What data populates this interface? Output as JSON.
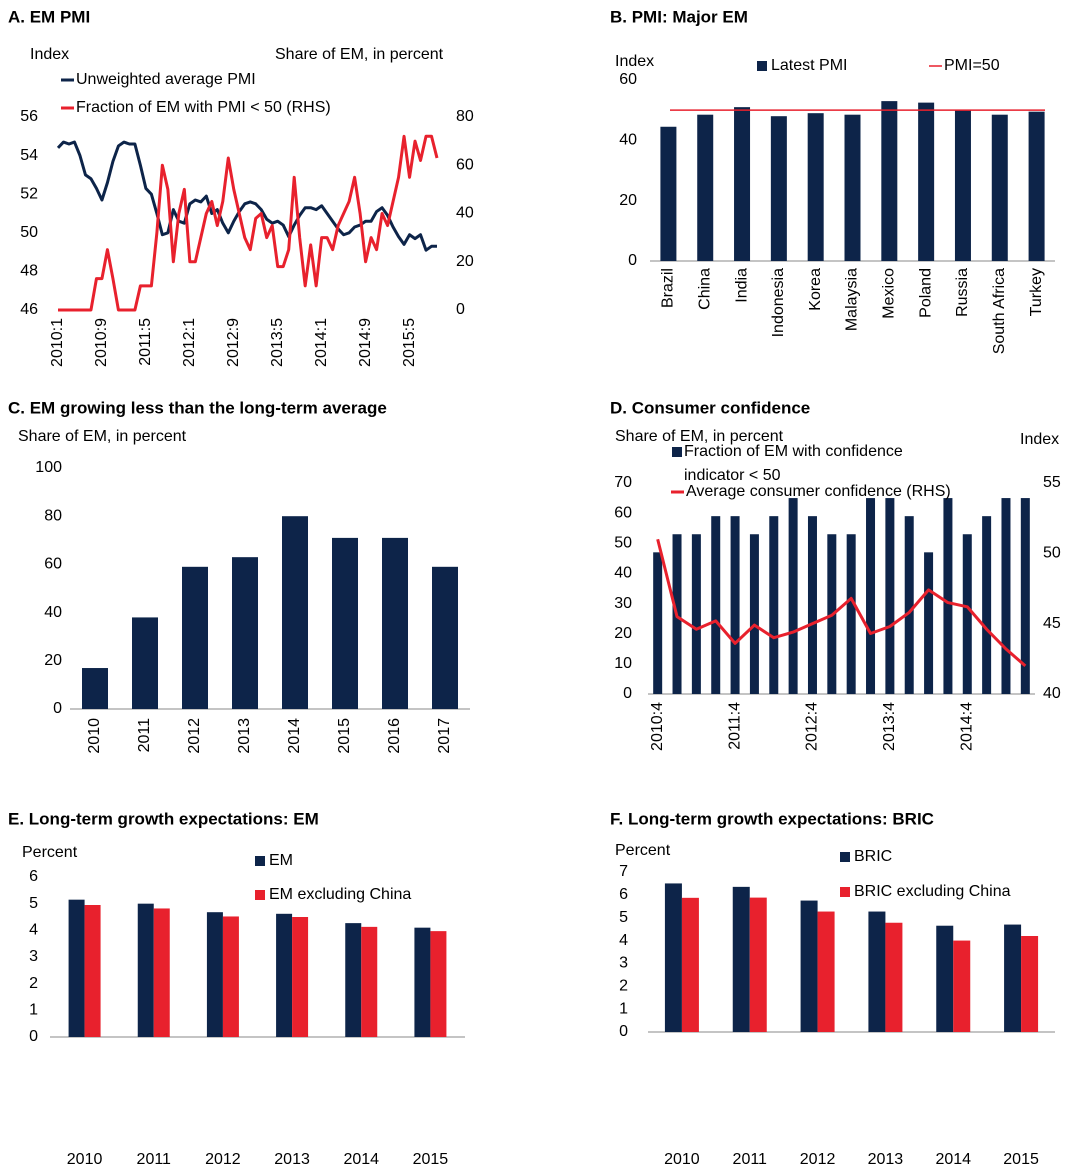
{
  "chart_data": [
    {
      "type": "line",
      "title": "A. EM PMI",
      "y_label": "Index",
      "y2_label": "Share of EM, in percent",
      "categories": [
        "2010:1",
        null,
        null,
        null,
        null,
        null,
        null,
        null,
        "2010:9",
        null,
        null,
        null,
        null,
        null,
        null,
        null,
        "2011:5",
        null,
        null,
        null,
        null,
        null,
        null,
        null,
        "2012:1",
        null,
        null,
        null,
        null,
        null,
        null,
        null,
        "2012:9",
        null,
        null,
        null,
        null,
        null,
        null,
        null,
        "2013:5",
        null,
        null,
        null,
        null,
        null,
        null,
        null,
        "2014:1",
        null,
        null,
        null,
        null,
        null,
        null,
        null,
        "2014:9",
        null,
        null,
        null,
        null,
        null,
        null,
        null,
        "2015:5",
        null,
        null,
        null,
        null,
        null
      ],
      "series": [
        {
          "name": "Unweighted average PMI",
          "color": "#0d2449",
          "values": [
            54.4,
            54.7,
            54.6,
            54.7,
            54.0,
            53.0,
            52.8,
            52.3,
            51.7,
            52.6,
            53.7,
            54.5,
            54.7,
            54.6,
            54.6,
            53.5,
            52.3,
            52.0,
            51.0,
            49.9,
            50.0,
            51.2,
            50.6,
            50.5,
            51.5,
            51.7,
            51.6,
            51.9,
            51.0,
            51.2,
            50.5,
            50.0,
            50.6,
            51.1,
            51.5,
            51.6,
            51.5,
            51.2,
            50.7,
            50.5,
            50.6,
            50.4,
            49.8,
            50.4,
            50.9,
            51.3,
            51.3,
            51.2,
            51.4,
            51.0,
            50.6,
            50.2,
            49.9,
            50.0,
            50.3,
            50.4,
            50.6,
            50.6,
            51.1,
            51.3,
            50.9,
            50.3,
            49.8,
            49.4,
            49.9,
            49.7,
            49.9,
            49.1,
            49.3,
            49.3
          ]
        },
        {
          "name": "Fraction of EM with PMI < 50 (RHS)",
          "color": "#e8212d",
          "axis": "y2",
          "values": [
            0,
            0,
            0,
            0,
            0,
            0,
            0,
            13,
            13,
            25,
            13,
            0,
            0,
            0,
            0,
            10,
            10,
            10,
            32,
            60,
            50,
            20,
            40,
            50,
            20,
            20,
            30,
            40,
            45,
            35,
            45,
            63,
            50,
            40,
            30,
            25,
            38,
            40,
            30,
            35,
            18,
            18,
            25,
            55,
            30,
            10,
            27,
            10,
            30,
            30,
            25,
            35,
            40,
            45,
            55,
            40,
            20,
            30,
            25,
            40,
            35,
            45,
            55,
            72,
            55,
            70,
            62,
            72,
            72,
            63
          ]
        }
      ],
      "ylim": [
        46,
        56
      ],
      "yticks": [
        46,
        48,
        50,
        52,
        54,
        56
      ],
      "y2lim": [
        0,
        80
      ],
      "y2ticks": [
        0,
        20,
        40,
        60,
        80
      ]
    },
    {
      "type": "bar",
      "title": "B. PMI: Major EM",
      "y_label": "Index",
      "categories": [
        "Brazil",
        "China",
        "India",
        "Indonesia",
        "Korea",
        "Malaysia",
        "Mexico",
        "Poland",
        "Russia",
        "South Africa",
        "Turkey"
      ],
      "series": [
        {
          "name": "Latest PMI",
          "color": "#0d2449",
          "values": [
            44.5,
            48.5,
            51,
            48,
            49,
            48.5,
            53,
            52.5,
            50,
            48.5,
            49.5
          ]
        }
      ],
      "reference_line": {
        "name": "PMI=50",
        "value": 50,
        "color": "#e8212d"
      },
      "ylim": [
        0,
        60
      ],
      "yticks": [
        0,
        20,
        40,
        60
      ]
    },
    {
      "type": "bar",
      "title": "C. EM growing less than the long-term average",
      "y_label": "Share of EM, in percent",
      "categories": [
        "2010",
        "2011",
        "2012",
        "2013",
        "2014",
        "2015",
        "2016",
        "2017"
      ],
      "values": [
        17,
        38,
        59,
        63,
        80,
        71,
        71,
        59
      ],
      "color": "#0d2449",
      "ylim": [
        0,
        100
      ],
      "yticks": [
        0,
        20,
        40,
        60,
        80,
        100
      ]
    },
    {
      "type": "combo",
      "title": "D. Consumer confidence",
      "y_label": "Share of EM, in percent",
      "y2_label": "Index",
      "categories": [
        "2010:4",
        null,
        null,
        null,
        "2011:4",
        null,
        null,
        null,
        "2012:4",
        null,
        null,
        null,
        "2013:4",
        null,
        null,
        null,
        "2014:4",
        null,
        null,
        null
      ],
      "series": [
        {
          "name": "Fraction of EM with confidence indicator < 50",
          "type": "bar",
          "color": "#0d2449",
          "values": [
            47,
            53,
            53,
            59,
            59,
            53,
            59,
            65,
            59,
            53,
            53,
            65,
            65,
            59,
            47,
            65,
            53,
            59,
            65,
            65
          ]
        },
        {
          "name": "Average consumer confidence (RHS)",
          "type": "line",
          "axis": "y2",
          "color": "#e8212d",
          "values": [
            51,
            45.5,
            44.6,
            45.2,
            43.6,
            44.9,
            44.0,
            44.4,
            45.0,
            45.6,
            46.8,
            44.3,
            44.8,
            45.8,
            47.4,
            46.5,
            46.2,
            44.6,
            43.2,
            42.0
          ]
        }
      ],
      "ylim": [
        0,
        70
      ],
      "yticks": [
        0,
        10,
        20,
        30,
        40,
        50,
        60,
        70
      ],
      "y2lim": [
        40,
        55
      ],
      "y2ticks": [
        40,
        45,
        50,
        55
      ]
    },
    {
      "type": "bar",
      "title": "E. Long-term growth expectations: EM",
      "y_label": "Percent",
      "categories": [
        "2010",
        "2011",
        "2012",
        "2013",
        "2014",
        "2015"
      ],
      "series": [
        {
          "name": "EM",
          "color": "#0d2449",
          "values": [
            5.15,
            5.0,
            4.68,
            4.62,
            4.27,
            4.1
          ]
        },
        {
          "name": "EM excluding China",
          "color": "#e8212d",
          "values": [
            4.95,
            4.82,
            4.52,
            4.5,
            4.13,
            3.97
          ]
        }
      ],
      "ylim": [
        0,
        6
      ],
      "yticks": [
        0,
        1,
        2,
        3,
        4,
        5,
        6
      ]
    },
    {
      "type": "bar",
      "title": "F. Long-term growth expectations: BRIC",
      "y_label": "Percent",
      "categories": [
        "2010",
        "2011",
        "2012",
        "2013",
        "2014",
        "2015"
      ],
      "series": [
        {
          "name": "BRIC",
          "color": "#0d2449",
          "values": [
            6.5,
            6.35,
            5.75,
            5.27,
            4.65,
            4.7
          ]
        },
        {
          "name": "BRIC excluding China",
          "color": "#e8212d",
          "values": [
            5.87,
            5.88,
            5.27,
            4.78,
            4.0,
            4.2
          ]
        }
      ],
      "ylim": [
        0,
        7
      ],
      "yticks": [
        0,
        1,
        2,
        3,
        4,
        5,
        6,
        7
      ]
    }
  ]
}
